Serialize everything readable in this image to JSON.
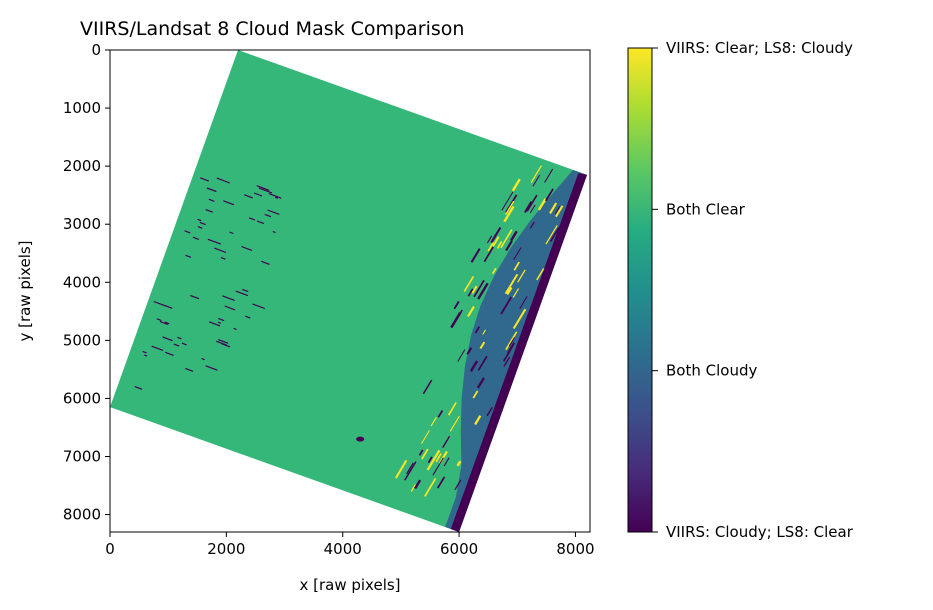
{
  "chart_data": {
    "type": "heatmap",
    "title": "VIIRS/Landsat 8 Cloud Mask Comparison",
    "xlabel": "x [raw pixels]",
    "ylabel": "y [raw pixels]",
    "xlim": [
      0,
      8250
    ],
    "ylim": [
      8300,
      0
    ],
    "x_ticks": [
      0,
      2000,
      4000,
      6000,
      8000
    ],
    "y_ticks": [
      0,
      1000,
      2000,
      3000,
      4000,
      5000,
      6000,
      7000,
      8000
    ],
    "grid": false,
    "colormap": "viridis",
    "colorbar": {
      "range": [
        0,
        3
      ],
      "ticks": [
        {
          "value": 3,
          "label": "VIIRS: Clear; LS8: Cloudy"
        },
        {
          "value": 2,
          "label": "Both Clear"
        },
        {
          "value": 1,
          "label": "Both Cloudy"
        },
        {
          "value": 0,
          "label": "VIIRS: Cloudy; LS8: Clear"
        }
      ]
    },
    "scene_footprint_corners": [
      {
        "x": 2200,
        "y": 0
      },
      {
        "x": 8200,
        "y": 2150
      },
      {
        "x": 6000,
        "y": 8300
      },
      {
        "x": 0,
        "y": 6150
      }
    ],
    "categories": {
      "both_clear": {
        "value": 2,
        "color": "#35b779"
      },
      "both_cloudy": {
        "value": 1,
        "color": "#31688e"
      },
      "viirs_cloudy_ls8_clear": {
        "value": 0,
        "color": "#440154"
      },
      "viirs_clear_ls8_cloudy": {
        "value": 3,
        "color": "#fde725"
      }
    }
  }
}
